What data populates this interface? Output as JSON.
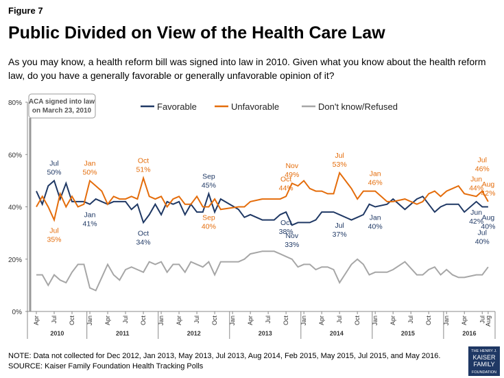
{
  "figure_label": "Figure 7",
  "chart_data": {
    "type": "line",
    "title": "Public Divided on View of the Health Care Law",
    "subtitle": "As you may know, a health reform bill was signed into law in 2010. Given what you know about the health reform law, do you have a generally favorable or generally unfavorable opinion of it?",
    "x": [
      "2010-04",
      "2010-05",
      "2010-06",
      "2010-07",
      "2010-08",
      "2010-09",
      "2010-10",
      "2010-11",
      "2010-12",
      "2011-01",
      "2011-02",
      "2011-03",
      "2011-04",
      "2011-05",
      "2011-06",
      "2011-07",
      "2011-08",
      "2011-09",
      "2011-10",
      "2011-11",
      "2011-12",
      "2012-01",
      "2012-02",
      "2012-03",
      "2012-04",
      "2012-05",
      "2012-06",
      "2012-07",
      "2012-08",
      "2012-09",
      "2012-10",
      "2012-11",
      "2013-02",
      "2013-03",
      "2013-04",
      "2013-06",
      "2013-08",
      "2013-09",
      "2013-10",
      "2013-11",
      "2013-12",
      "2014-01",
      "2014-02",
      "2014-03",
      "2014-04",
      "2014-05",
      "2014-06",
      "2014-07",
      "2014-09",
      "2014-10",
      "2014-11",
      "2014-12",
      "2015-01",
      "2015-03",
      "2015-04",
      "2015-06",
      "2015-08",
      "2015-09",
      "2015-10",
      "2015-11",
      "2015-12",
      "2016-01",
      "2016-02",
      "2016-03",
      "2016-04",
      "2016-06",
      "2016-07",
      "2016-08"
    ],
    "series": [
      {
        "name": "Favorable",
        "color": "#1f3864",
        "values": [
          46,
          41,
          48,
          50,
          43,
          49,
          42,
          42,
          42,
          41,
          43,
          42,
          41,
          42,
          42,
          42,
          39,
          41,
          34,
          37,
          41,
          37,
          42,
          41,
          42,
          37,
          41,
          38,
          38,
          45,
          38,
          43,
          39,
          36,
          37,
          35,
          35,
          37,
          38,
          33,
          34,
          34,
          34,
          35,
          38,
          38,
          38,
          37,
          35,
          36,
          37,
          41,
          40,
          41,
          43,
          39,
          43,
          44,
          41,
          38,
          40,
          41,
          41,
          41,
          38,
          42,
          40,
          40
        ]
      },
      {
        "name": "Unfavorable",
        "color": "#e46c0a",
        "values": [
          40,
          44,
          40,
          35,
          45,
          40,
          44,
          40,
          41,
          50,
          48,
          46,
          41,
          44,
          43,
          43,
          44,
          43,
          51,
          44,
          43,
          44,
          40,
          43,
          44,
          41,
          41,
          44,
          40,
          40,
          43,
          39,
          40,
          40,
          42,
          43,
          43,
          43,
          44,
          49,
          48,
          50,
          47,
          46,
          46,
          45,
          45,
          53,
          47,
          43,
          46,
          46,
          46,
          42,
          42,
          43,
          41,
          42,
          45,
          46,
          44,
          46,
          47,
          48,
          45,
          44,
          46,
          42
        ]
      },
      {
        "name": "Don't know/Refused",
        "color": "#a6a6a6",
        "values": [
          14,
          14,
          10,
          14,
          12,
          11,
          15,
          18,
          18,
          9,
          8,
          13,
          18,
          14,
          12,
          16,
          17,
          16,
          15,
          19,
          18,
          19,
          15,
          18,
          18,
          15,
          19,
          18,
          17,
          19,
          14,
          19,
          19,
          20,
          22,
          23,
          23,
          22,
          21,
          20,
          17,
          18,
          18,
          16,
          17,
          17,
          16,
          11,
          18,
          20,
          18,
          14,
          15,
          15,
          16,
          19,
          14,
          14,
          16,
          17,
          14,
          16,
          14,
          13,
          13,
          14,
          14,
          17
        ]
      }
    ],
    "ylim": [
      0,
      80
    ],
    "yticks": [
      {
        "value": 0,
        "label": "0%"
      },
      {
        "value": 20,
        "label": "20%"
      },
      {
        "value": 40,
        "label": "40%"
      },
      {
        "value": 60,
        "label": "60%"
      },
      {
        "value": 80,
        "label": "80%"
      }
    ],
    "xticks": [
      {
        "value": "2010-04",
        "label": "Apr"
      },
      {
        "value": "2010-07",
        "label": "Jul"
      },
      {
        "value": "2010-10",
        "label": "Oct"
      },
      {
        "value": "2011-01",
        "label": "Jan"
      },
      {
        "value": "2011-04",
        "label": "Apr"
      },
      {
        "value": "2011-07",
        "label": "Jul"
      },
      {
        "value": "2011-10",
        "label": "Oct"
      },
      {
        "value": "2012-01",
        "label": "Jan"
      },
      {
        "value": "2012-04",
        "label": "Apr"
      },
      {
        "value": "2012-07",
        "label": "Jul"
      },
      {
        "value": "2012-10",
        "label": "Oct"
      },
      {
        "value": "2013-01",
        "label": "Jan"
      },
      {
        "value": "2013-04",
        "label": "Apr"
      },
      {
        "value": "2013-07",
        "label": "Jul"
      },
      {
        "value": "2013-10",
        "label": "Oct"
      },
      {
        "value": "2014-01",
        "label": "Jan"
      },
      {
        "value": "2014-04",
        "label": "Apr"
      },
      {
        "value": "2014-07",
        "label": "Jul"
      },
      {
        "value": "2014-10",
        "label": "Oct"
      },
      {
        "value": "2015-01",
        "label": "Jan"
      },
      {
        "value": "2015-04",
        "label": "Apr"
      },
      {
        "value": "2015-07",
        "label": "Jul"
      },
      {
        "value": "2015-10",
        "label": "Oct"
      },
      {
        "value": "2016-01",
        "label": "Jan"
      },
      {
        "value": "2016-04",
        "label": "Apr"
      },
      {
        "value": "2016-07",
        "label": "Jul"
      },
      {
        "value": "2016-08",
        "label": "Aug"
      }
    ],
    "years": [
      "2010",
      "2011",
      "2012",
      "2013",
      "2014",
      "2015",
      "2016"
    ],
    "legend": "top",
    "event_note": [
      "ACA signed into law",
      "on March 23, 2010"
    ],
    "annotations": [
      {
        "series": "Favorable",
        "x": "2010-07",
        "text": [
          "Jul",
          "50%"
        ],
        "position": "above"
      },
      {
        "series": "Favorable",
        "x": "2011-01",
        "text": [
          "Jan",
          "41%"
        ],
        "position": "below"
      },
      {
        "series": "Favorable",
        "x": "2011-10",
        "text": [
          "Oct",
          "34%"
        ],
        "position": "below"
      },
      {
        "series": "Favorable",
        "x": "2012-09",
        "text": [
          "Sep",
          "45%"
        ],
        "position": "above"
      },
      {
        "series": "Favorable",
        "x": "2013-10",
        "text": [
          "Oct",
          "38%"
        ],
        "position": "below"
      },
      {
        "series": "Favorable",
        "x": "2013-11",
        "text": [
          "Nov",
          "33%"
        ],
        "position": "below"
      },
      {
        "series": "Favorable",
        "x": "2014-07",
        "text": [
          "Jul",
          "37%"
        ],
        "position": "below"
      },
      {
        "series": "Favorable",
        "x": "2015-01",
        "text": [
          "Jan",
          "40%"
        ],
        "position": "below"
      },
      {
        "series": "Favorable",
        "x": "2016-06",
        "text": [
          "Jun",
          "42%"
        ],
        "position": "below"
      },
      {
        "series": "Favorable",
        "x": "2016-07",
        "text": [
          "Jul",
          "40%"
        ],
        "position": "below-far"
      },
      {
        "series": "Favorable",
        "x": "2016-08",
        "text": [
          "Aug",
          "40%"
        ],
        "position": "below"
      },
      {
        "series": "Unfavorable",
        "x": "2010-07",
        "text": [
          "Jul",
          "35%"
        ],
        "position": "below"
      },
      {
        "series": "Unfavorable",
        "x": "2011-01",
        "text": [
          "Jan",
          "50%"
        ],
        "position": "above"
      },
      {
        "series": "Unfavorable",
        "x": "2011-10",
        "text": [
          "Oct",
          "51%"
        ],
        "position": "above"
      },
      {
        "series": "Unfavorable",
        "x": "2012-09",
        "text": [
          "Sep",
          "40%"
        ],
        "position": "below"
      },
      {
        "series": "Unfavorable",
        "x": "2013-10",
        "text": [
          "Oct",
          "44%"
        ],
        "position": "above"
      },
      {
        "series": "Unfavorable",
        "x": "2013-11",
        "text": [
          "Nov",
          "49%"
        ],
        "position": "above"
      },
      {
        "series": "Unfavorable",
        "x": "2014-07",
        "text": [
          "Jul",
          "53%"
        ],
        "position": "above"
      },
      {
        "series": "Unfavorable",
        "x": "2015-01",
        "text": [
          "Jan",
          "46%"
        ],
        "position": "above"
      },
      {
        "series": "Unfavorable",
        "x": "2016-06",
        "text": [
          "Jun",
          "44%"
        ],
        "position": "above"
      },
      {
        "series": "Unfavorable",
        "x": "2016-07",
        "text": [
          "Jul",
          "46%"
        ],
        "position": "above-far"
      },
      {
        "series": "Unfavorable",
        "x": "2016-08",
        "text": [
          "Aug",
          "42%"
        ],
        "position": "above"
      }
    ]
  },
  "note": "NOTE: Data not collected for Dec 2012, Jan 2013, May 2013, Jul 2013, Aug 2014, Feb 2015, May 2015, Jul 2015, and May 2016.",
  "source": "SOURCE: Kaiser Family Foundation Health Tracking Polls",
  "logo": [
    "THE HENRY J.",
    "KAISER",
    "FAMILY",
    "FOUNDATION"
  ]
}
